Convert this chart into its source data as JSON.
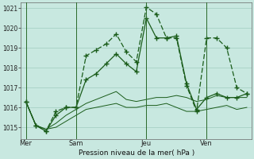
{
  "title": "Pression niveau de la mer( hPa )",
  "background_color": "#c8e8e0",
  "plot_bg_color": "#c8e8e0",
  "grid_color": "#a0ccbf",
  "line_color": "#1a5c1a",
  "ylim": [
    1014.4,
    1021.3
  ],
  "yticks": [
    1015,
    1016,
    1017,
    1018,
    1019,
    1020,
    1021
  ],
  "day_labels": [
    "Mer",
    "Sam",
    "Jeu",
    "Ven"
  ],
  "day_positions": [
    0,
    5,
    12,
    18
  ],
  "n_points": 23,
  "series1_x": [
    0,
    1,
    2,
    3,
    4,
    5,
    6,
    7,
    8,
    9,
    10,
    11,
    12,
    13,
    14,
    15,
    16,
    17,
    18,
    19,
    20,
    21,
    22
  ],
  "series1_y": [
    1016.3,
    1015.1,
    1014.8,
    1015.8,
    1016.0,
    1016.0,
    1018.6,
    1018.9,
    1019.2,
    1019.7,
    1018.8,
    1018.3,
    1021.05,
    1020.7,
    1019.5,
    1019.5,
    1017.1,
    1015.8,
    1019.5,
    1019.5,
    1019.0,
    1017.0,
    1016.7
  ],
  "series2_x": [
    0,
    1,
    2,
    3,
    4,
    5,
    6,
    7,
    8,
    9,
    10,
    11,
    12,
    13,
    14,
    15,
    16,
    17,
    18,
    19,
    20,
    21,
    22
  ],
  "series2_y": [
    1016.3,
    1015.1,
    1014.8,
    1015.6,
    1016.0,
    1016.0,
    1017.4,
    1017.7,
    1018.2,
    1018.7,
    1018.2,
    1017.8,
    1020.5,
    1019.5,
    1019.5,
    1019.6,
    1017.2,
    1015.9,
    1016.5,
    1016.7,
    1016.5,
    1016.5,
    1016.7
  ],
  "series3_x": [
    0,
    1,
    2,
    3,
    4,
    5,
    6,
    7,
    8,
    9,
    10,
    11,
    12,
    13,
    14,
    15,
    16,
    17,
    18,
    19,
    20,
    21,
    22
  ],
  "series3_y": [
    1016.3,
    1015.1,
    1014.9,
    1015.2,
    1015.6,
    1015.9,
    1016.2,
    1016.4,
    1016.6,
    1016.8,
    1016.4,
    1016.3,
    1016.4,
    1016.5,
    1016.5,
    1016.6,
    1016.5,
    1016.3,
    1016.4,
    1016.6,
    1016.5,
    1016.5,
    1016.5
  ],
  "series4_x": [
    0,
    1,
    2,
    3,
    4,
    5,
    6,
    7,
    8,
    9,
    10,
    11,
    12,
    13,
    14,
    15,
    16,
    17,
    18,
    19,
    20,
    21,
    22
  ],
  "series4_y": [
    1016.3,
    1015.1,
    1014.9,
    1015.0,
    1015.3,
    1015.6,
    1015.9,
    1016.0,
    1016.1,
    1016.2,
    1016.0,
    1016.0,
    1016.1,
    1016.1,
    1016.2,
    1016.0,
    1015.8,
    1015.8,
    1015.9,
    1016.0,
    1016.1,
    1015.9,
    1016.0
  ],
  "vert_lines": [
    0,
    5,
    12,
    18
  ],
  "figsize": [
    3.2,
    2.0
  ],
  "dpi": 100
}
